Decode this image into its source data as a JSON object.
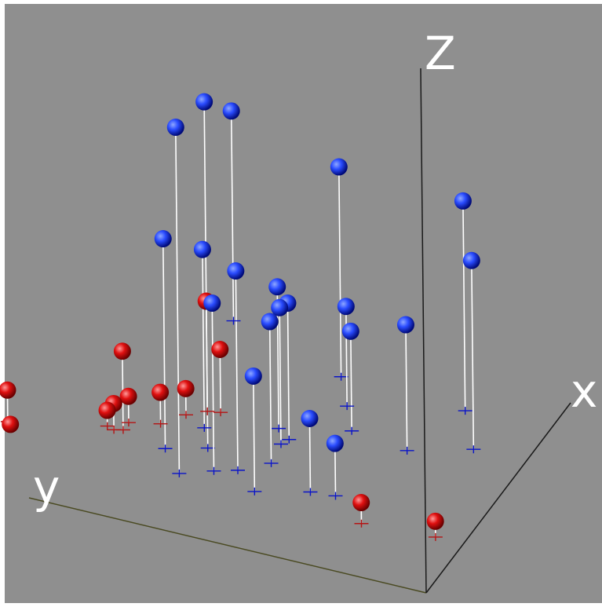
{
  "chart_data": {
    "type": "scatter",
    "title": "",
    "axes": {
      "x_label": "x",
      "y_label": "y",
      "z_label": "Z"
    },
    "background_color": "#8f8f8f",
    "grid": false,
    "legend": "none",
    "drop_lines": true,
    "series": [
      {
        "color": "#0a14c8",
        "marker_color": "#2a4cff",
        "points": [
          {
            "x": 0.28,
            "y": 0.72,
            "z": 0.66
          },
          {
            "x": 0.43,
            "y": 0.7,
            "z": 0.66
          },
          {
            "x": 0.52,
            "y": 0.74,
            "z": 0.34
          },
          {
            "x": 0.36,
            "y": 0.6,
            "z": 0.38
          },
          {
            "x": 0.38,
            "y": 0.79,
            "z": 0.4
          },
          {
            "x": 0.33,
            "y": 0.65,
            "z": 0.32
          },
          {
            "x": 0.28,
            "y": 0.53,
            "z": 0.22
          },
          {
            "x": 0.34,
            "y": 0.41,
            "z": 0.14
          },
          {
            "x": 0.35,
            "y": 0.35,
            "z": 0.1
          },
          {
            "x": 0.43,
            "y": 0.54,
            "z": 0.27
          },
          {
            "x": 0.53,
            "y": 0.55,
            "z": 0.26
          },
          {
            "x": 0.56,
            "y": 0.54,
            "z": 0.26
          },
          {
            "x": 0.6,
            "y": 0.58,
            "z": 0.27
          },
          {
            "x": 0.91,
            "y": 0.53,
            "z": 0.4
          },
          {
            "x": 0.89,
            "y": 0.21,
            "z": 0.4
          },
          {
            "x": 0.72,
            "y": 0.13,
            "z": 0.36
          },
          {
            "x": 0.67,
            "y": 0.42,
            "z": 0.19
          },
          {
            "x": 0.78,
            "y": 0.47,
            "z": 0.19
          },
          {
            "x": 0.64,
            "y": 0.27,
            "z": 0.24
          },
          {
            "x": 1.05,
            "y": 0.85,
            "z": 0.4
          }
        ]
      },
      {
        "color": "#b41414",
        "marker_color": "#e01010",
        "points": [
          {
            "x": 0.34,
            "y": 1.23,
            "z": 0.16
          },
          {
            "x": 0.33,
            "y": 1.17,
            "z": 0.06
          },
          {
            "x": 0.32,
            "y": 1.16,
            "z": 0.0
          },
          {
            "x": 0.42,
            "y": 0.91,
            "z": 0.15
          },
          {
            "x": 0.41,
            "y": 0.93,
            "z": 0.05
          },
          {
            "x": 0.42,
            "y": 0.95,
            "z": 0.03
          },
          {
            "x": 0.46,
            "y": 0.91,
            "z": 0.05
          },
          {
            "x": 0.49,
            "y": 0.84,
            "z": 0.06
          },
          {
            "x": 0.56,
            "y": 0.8,
            "z": 0.05
          },
          {
            "x": 0.6,
            "y": 0.76,
            "z": 0.21
          },
          {
            "x": 0.61,
            "y": 0.73,
            "z": 0.12
          },
          {
            "x": 0.25,
            "y": 0.25,
            "z": 0.04
          },
          {
            "x": 0.27,
            "y": 0.07,
            "z": 0.03
          }
        ]
      }
    ]
  }
}
